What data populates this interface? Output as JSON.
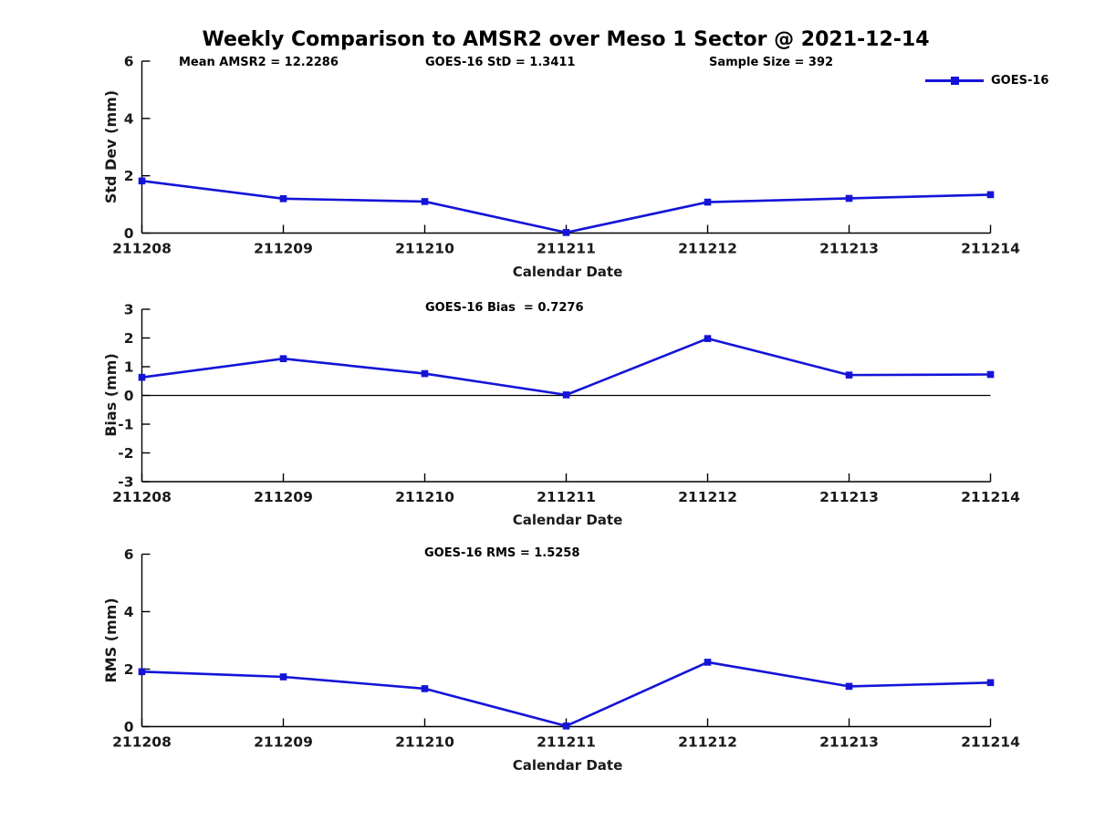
{
  "title": "Weekly Comparison to AMSR2 over Meso 1 Sector @ 2021-12-14",
  "colors": {
    "series_line": "#1414d8",
    "axis": "#000000",
    "text": "#1a1a1a"
  },
  "chart_data": [
    {
      "type": "line",
      "annotations": [
        "Mean AMSR2 = 12.2286",
        "GOES-16 StD = 1.3411",
        "Sample Size = 392"
      ],
      "categories": [
        "211208",
        "211209",
        "211210",
        "211211",
        "211212",
        "211213",
        "211214"
      ],
      "series": [
        {
          "name": "GOES-16",
          "values": [
            1.82,
            1.2,
            1.1,
            0.02,
            1.08,
            1.21,
            1.34
          ]
        }
      ],
      "xlabel": "Calendar Date",
      "ylabel": "Std Dev (mm)",
      "ylim": [
        0,
        6
      ],
      "yticks": [
        0,
        2,
        4,
        6
      ],
      "grid": false,
      "zero_line": false,
      "legend_position": "top-right",
      "marker": "square"
    },
    {
      "type": "line",
      "annotation": "GOES-16 Bias  = 0.7276",
      "categories": [
        "211208",
        "211209",
        "211210",
        "211211",
        "211212",
        "211213",
        "211214"
      ],
      "series": [
        {
          "name": "GOES-16",
          "values": [
            0.63,
            1.28,
            0.76,
            0.02,
            1.98,
            0.71,
            0.73
          ]
        }
      ],
      "xlabel": "Calendar Date",
      "ylabel": "Bias (mm)",
      "ylim": [
        -3,
        3
      ],
      "yticks": [
        3,
        2,
        1,
        0,
        -1,
        -2,
        -3
      ],
      "grid": false,
      "zero_line": true,
      "marker": "square"
    },
    {
      "type": "line",
      "annotation": "GOES-16 RMS = 1.5258",
      "categories": [
        "211208",
        "211209",
        "211210",
        "211211",
        "211212",
        "211213",
        "211214"
      ],
      "series": [
        {
          "name": "GOES-16",
          "values": [
            1.91,
            1.73,
            1.32,
            0.02,
            2.24,
            1.4,
            1.53
          ]
        }
      ],
      "xlabel": "Calendar Date",
      "ylabel": "RMS (mm)",
      "ylim": [
        0,
        6
      ],
      "yticks": [
        0,
        2,
        4,
        6
      ],
      "grid": false,
      "zero_line": false,
      "marker": "square"
    }
  ]
}
